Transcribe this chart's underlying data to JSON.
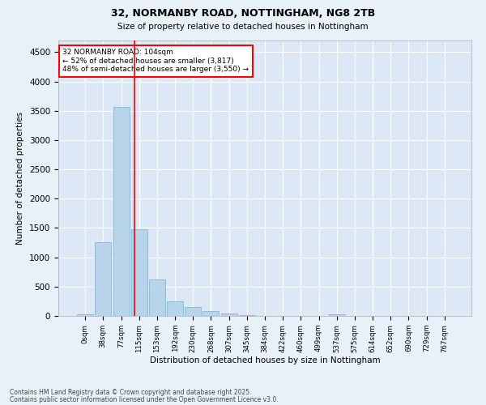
{
  "title1": "32, NORMANBY ROAD, NOTTINGHAM, NG8 2TB",
  "title2": "Size of property relative to detached houses in Nottingham",
  "xlabel": "Distribution of detached houses by size in Nottingham",
  "ylabel": "Number of detached properties",
  "bar_labels": [
    "0sqm",
    "38sqm",
    "77sqm",
    "115sqm",
    "153sqm",
    "192sqm",
    "230sqm",
    "268sqm",
    "307sqm",
    "345sqm",
    "384sqm",
    "422sqm",
    "460sqm",
    "499sqm",
    "537sqm",
    "575sqm",
    "614sqm",
    "652sqm",
    "690sqm",
    "729sqm",
    "767sqm"
  ],
  "bar_values": [
    28,
    1255,
    3565,
    1480,
    618,
    248,
    148,
    88,
    40,
    12,
    5,
    0,
    0,
    0,
    30,
    0,
    0,
    0,
    0,
    0,
    0
  ],
  "bar_color": "#b8d4ea",
  "bar_edge_color": "#7aafc8",
  "red_line_x": 2.72,
  "annotation_line1": "32 NORMANBY ROAD: 104sqm",
  "annotation_line2": "← 52% of detached houses are smaller (3,817)",
  "annotation_line3": "48% of semi-detached houses are larger (3,550) →",
  "ylim": [
    0,
    4700
  ],
  "yticks": [
    0,
    500,
    1000,
    1500,
    2000,
    2500,
    3000,
    3500,
    4000,
    4500
  ],
  "footnote1": "Contains HM Land Registry data © Crown copyright and database right 2025.",
  "footnote2": "Contains public sector information licensed under the Open Government Licence v3.0.",
  "bg_color": "#e8f0f8",
  "plot_bg_color": "#dce8f5"
}
